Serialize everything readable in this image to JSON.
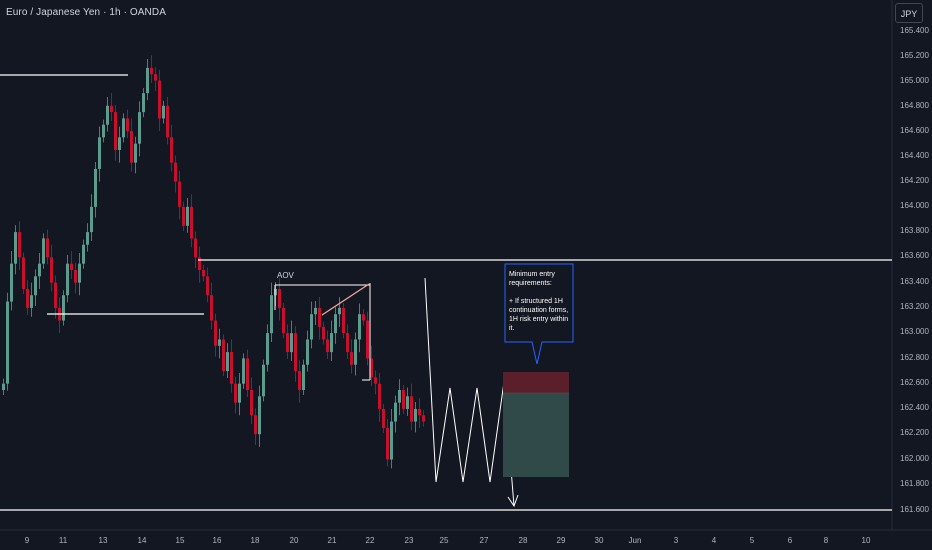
{
  "header": {
    "title": "Euro / Japanese Yen · 1h · OANDA",
    "currency_button": "JPY"
  },
  "price_axis": {
    "labels": [
      "165.400",
      "165.200",
      "165.000",
      "164.800",
      "164.600",
      "164.400",
      "164.200",
      "164.000",
      "163.800",
      "163.600",
      "163.400",
      "163.200",
      "163.000",
      "162.800",
      "162.600",
      "162.400",
      "162.200",
      "162.000",
      "161.800",
      "161.600"
    ]
  },
  "time_axis": {
    "labels": [
      "9",
      "11",
      "13",
      "14",
      "15",
      "16",
      "18",
      "20",
      "21",
      "22",
      "23",
      "25",
      "27",
      "28",
      "29",
      "30",
      "Jun",
      "3",
      "4",
      "5",
      "6",
      "8",
      "10"
    ]
  },
  "annotations": {
    "aov_label": "AOV",
    "callout_lines": [
      "Minimum entry",
      "requirements:",
      "",
      "+ If structured 1H",
      "continuation forms,",
      "1H risk entry within",
      "it."
    ]
  },
  "colors": {
    "background": "#131722",
    "bull": "#5b9c8f",
    "bear": "#c8102e",
    "wick": "#8a8d96",
    "line": "#ffffff",
    "stop_zone": "#5a1f2b",
    "target_zone": "#2f4a48",
    "callout_fill": "#131722",
    "callout_border": "#2962ff",
    "trendline": "#f7a599"
  },
  "chart_data": {
    "type": "candlestick",
    "symbol": "EURJPY",
    "interval": "1h",
    "ylim": [
      161.55,
      165.45
    ],
    "closes": [
      162.6,
      163.25,
      163.55,
      163.8,
      163.6,
      163.35,
      163.2,
      163.3,
      163.45,
      163.55,
      163.75,
      163.6,
      163.4,
      163.2,
      163.1,
      163.3,
      163.55,
      163.5,
      163.4,
      163.55,
      163.7,
      163.8,
      164.0,
      164.3,
      164.55,
      164.65,
      164.8,
      164.75,
      164.45,
      164.55,
      164.7,
      164.6,
      164.35,
      164.5,
      164.75,
      164.9,
      165.1,
      165.05,
      165.0,
      164.7,
      164.8,
      164.55,
      164.35,
      164.2,
      164.0,
      163.85,
      164.0,
      163.75,
      163.6,
      163.5,
      163.45,
      163.3,
      163.1,
      162.9,
      162.95,
      162.7,
      162.85,
      162.6,
      162.45,
      162.6,
      162.8,
      162.55,
      162.35,
      162.2,
      162.5,
      162.75,
      163.0,
      163.3,
      163.35,
      163.2,
      163.0,
      162.85,
      163.0,
      162.7,
      162.55,
      162.75,
      162.95,
      163.15,
      163.2,
      163.05,
      162.95,
      162.85,
      163.0,
      163.15,
      163.2,
      163.0,
      162.85,
      162.75,
      162.95,
      163.15,
      163.1,
      162.8,
      162.65,
      162.6,
      162.4,
      162.25,
      162.0,
      162.3,
      162.45,
      162.55,
      162.4,
      162.5,
      162.3,
      162.4,
      162.35,
      162.3
    ]
  }
}
